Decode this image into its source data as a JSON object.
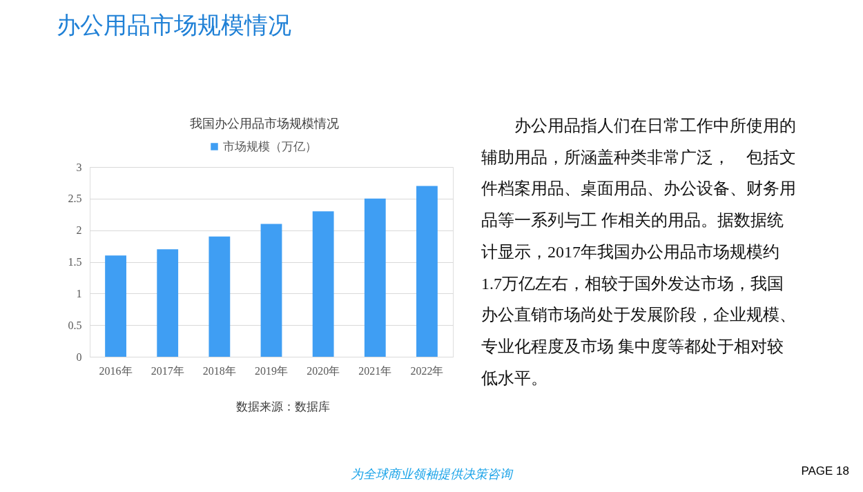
{
  "chart_data": {
    "type": "bar",
    "title": "办公用品市场规模情况",
    "subtitle": "我国办公用品市场规模情况",
    "categories": [
      "2016年",
      "2017年",
      "2018年",
      "2019年",
      "2020年",
      "2021年",
      "2022年"
    ],
    "series": [
      {
        "name": "市场规模（万亿）",
        "color": "#3f9ef3",
        "values": [
          1.6,
          1.7,
          1.9,
          2.1,
          2.3,
          2.5,
          2.7
        ]
      }
    ],
    "ylim": [
      0,
      3
    ],
    "yticks": [
      0,
      0.5,
      1,
      1.5,
      2,
      2.5,
      3
    ],
    "grid": "y",
    "legend": "top",
    "annotations": [
      "数据来源：数据库",
      "办公用品指人们在日常工作中所使用的辅助用品，所涵盖种类非常广泛，　包括文件档案用品、桌面用品、办公设备、财务用品等一系列与工 作相关的用品。据数据统计显示，2017年我国办公用品市场规模约1.7万亿左右，相较于国外发达市场，我国办公直销市场尚处于发展阶段，企业规模、专业化程度及市场 集中度等都处于相对较低水平。",
      "为全球商业领袖提供决策咨询",
      "PAGE 18"
    ]
  }
}
